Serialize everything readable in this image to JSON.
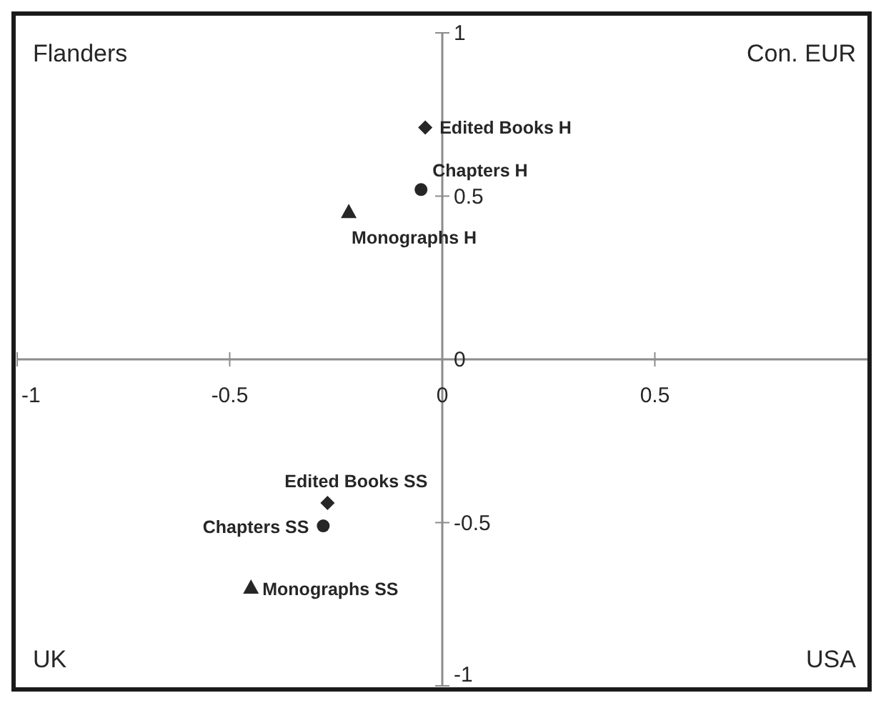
{
  "chart_data": {
    "type": "scatter",
    "xlim": [
      -1,
      1
    ],
    "ylim": [
      -1,
      1
    ],
    "xticks": [
      -1,
      -0.5,
      0,
      0.5
    ],
    "yticks": [
      -1,
      -0.5,
      0,
      0.5,
      1
    ],
    "grid": false,
    "legend": false,
    "annotations": [
      "Flanders",
      "Con. EUR",
      "UK",
      "USA"
    ],
    "series": [
      {
        "name": "Edited Books H",
        "color": "#262626",
        "marker": "diamond",
        "x": [
          -0.04
        ],
        "values": [
          0.71
        ]
      },
      {
        "name": "Chapters H",
        "color": "#262626",
        "marker": "circle",
        "x": [
          -0.05
        ],
        "values": [
          0.52
        ]
      },
      {
        "name": "Monographs H",
        "color": "#262626",
        "marker": "triangle",
        "x": [
          -0.22
        ],
        "values": [
          0.45
        ]
      },
      {
        "name": "Edited Books SS",
        "color": "#262626",
        "marker": "diamond",
        "x": [
          -0.27
        ],
        "values": [
          -0.44
        ]
      },
      {
        "name": "Chapters SS",
        "color": "#262626",
        "marker": "circle",
        "x": [
          -0.28
        ],
        "values": [
          -0.51
        ]
      },
      {
        "name": "Monographs SS",
        "color": "#262626",
        "marker": "triangle",
        "x": [
          -0.45
        ],
        "values": [
          -0.7
        ]
      }
    ]
  }
}
